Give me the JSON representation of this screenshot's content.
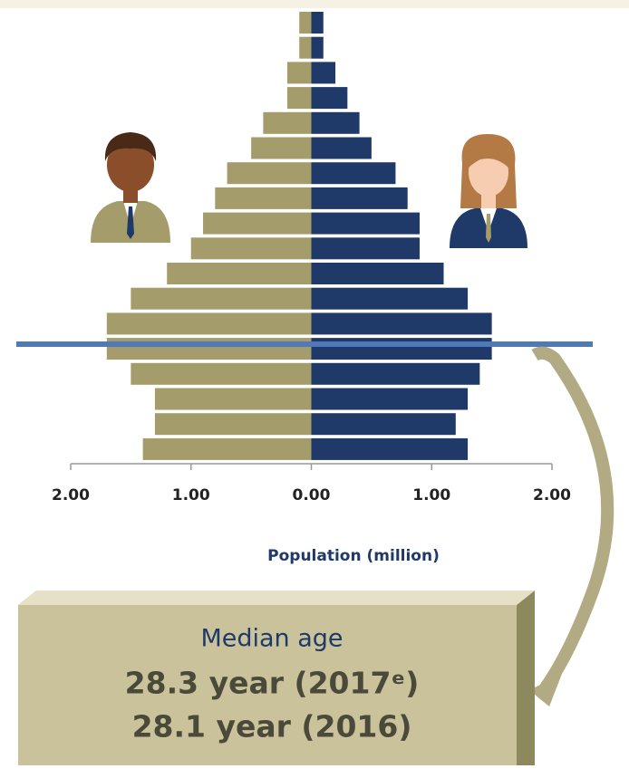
{
  "chart_data": {
    "type": "pyramid",
    "x_label": "Population (million)",
    "categories": [
      null,
      null,
      null,
      null,
      null,
      null,
      null,
      null,
      null,
      null,
      null,
      null,
      null,
      null,
      null,
      null,
      null,
      null
    ],
    "series": [
      {
        "color": "#a59c6c",
        "values": [
          0.1,
          0.1,
          0.2,
          0.2,
          0.4,
          0.5,
          0.7,
          0.8,
          0.9,
          1.0,
          1.2,
          1.5,
          1.7,
          1.7,
          1.5,
          1.3,
          1.3,
          1.4
        ]
      },
      {
        "color": "#1f3a68",
        "values": [
          0.1,
          0.1,
          0.2,
          0.3,
          0.4,
          0.5,
          0.7,
          0.8,
          0.9,
          0.9,
          1.1,
          1.3,
          1.5,
          1.5,
          1.4,
          1.3,
          1.2,
          1.3
        ]
      }
    ],
    "xlim": [
      -2,
      2
    ],
    "xticks": [
      {
        "value": -2,
        "label": "2.00"
      },
      {
        "value": -1,
        "label": "1.00"
      },
      {
        "value": 0,
        "label": "0.00"
      },
      {
        "value": 1,
        "label": "1.00"
      },
      {
        "value": 2,
        "label": "2.00"
      }
    ],
    "annotation": {
      "title": "Median age",
      "lines": [
        "28.3 year (2017ᵉ)",
        "28.1 year (2016)"
      ]
    }
  }
}
